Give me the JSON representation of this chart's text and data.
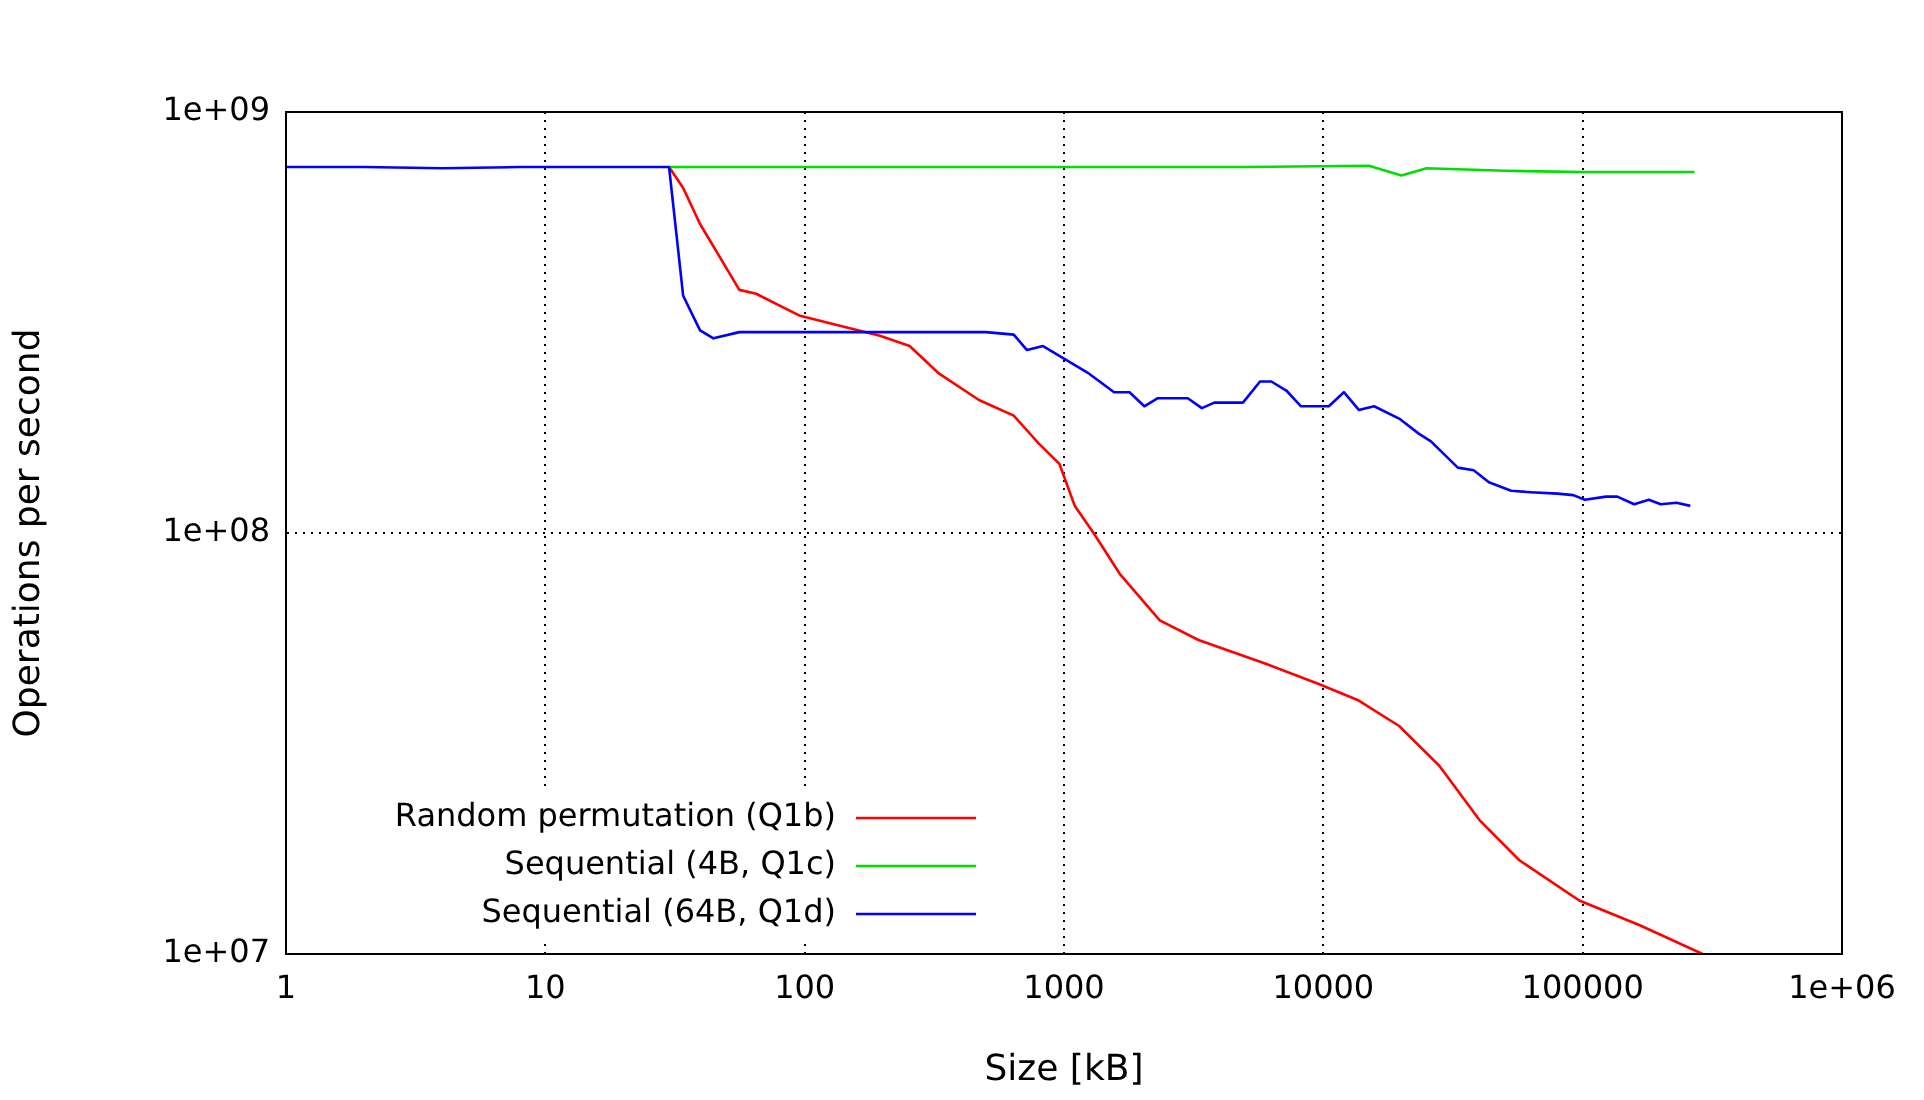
{
  "chart_data": {
    "type": "line",
    "xlabel": "Size [kB]",
    "ylabel": "Operations per second",
    "log": "xy",
    "grid": true,
    "legend": "bottom left",
    "marker": "none",
    "line_style": "solid",
    "xlim": [
      1,
      1000000
    ],
    "xticks": [
      1,
      10,
      100,
      1000,
      10000,
      100000,
      {
        "value": 1000000,
        "label": "1e+06"
      }
    ],
    "ylim": [
      10000000,
      1000000000
    ],
    "yticks": [
      {
        "value": 10000000,
        "label": "1e+07"
      },
      {
        "value": 100000000,
        "label": "1e+08"
      },
      {
        "value": 1000000000,
        "label": "1e+09"
      }
    ],
    "series": [
      {
        "name": "Random permutation (Q1b)",
        "color": "#ff0000",
        "x": [
          30,
          34,
          39.5,
          56,
          65,
          96,
          195,
          254,
          330,
          470,
          640,
          800,
          960,
          1100,
          1300,
          1640,
          2340,
          3300,
          6000,
          9600,
          13700,
          19600,
          28000,
          40000,
          57000,
          97000,
          166000,
          290000
        ],
        "values": [
          740000000,
          660000000,
          542000000,
          378000000,
          370000000,
          328000000,
          294000000,
          278000000,
          239000000,
          207000000,
          190000000,
          163000000,
          146000000,
          116000000,
          100000000,
          80000000,
          62000000,
          55700000,
          48900000,
          43800000,
          40000000,
          34800000,
          28000000,
          20800000,
          16700000,
          13400000,
          11700000,
          10000000
        ]
      },
      {
        "name": "Sequential (4B, Q1c)",
        "color": "#00e000",
        "x": [
          30,
          100,
          1000,
          5000,
          15000,
          20000,
          25000,
          50000,
          100000,
          270000
        ],
        "values": [
          740000000,
          740000000,
          740000000,
          740000000,
          745000000,
          707000000,
          735000000,
          725000000,
          720000000,
          720000000
        ]
      },
      {
        "name": "Sequential (64B, Q1d)",
        "color": "#0000ff",
        "x": [
          1,
          2,
          4,
          8,
          16,
          30,
          34,
          39.5,
          44.5,
          56,
          500,
          640,
          720,
          830,
          1250,
          1560,
          1790,
          2040,
          2300,
          3000,
          3400,
          3800,
          4900,
          5700,
          6300,
          7200,
          8200,
          10500,
          12000,
          13700,
          15700,
          19600,
          23400,
          26000,
          33000,
          38000,
          43500,
          53000,
          63000,
          80000,
          92000,
          102000,
          123000,
          136000,
          158000,
          180000,
          200000,
          230000,
          260000
        ],
        "values": [
          740000000,
          740000000,
          735000000,
          740000000,
          740000000,
          740000000,
          366000000,
          303000000,
          290000000,
          300000000,
          300000000,
          296000000,
          272000000,
          278000000,
          239000000,
          216000000,
          216000000,
          200000000,
          209000000,
          209000000,
          198000000,
          204000000,
          204000000,
          229000000,
          229000000,
          218000000,
          200000000,
          200000000,
          216000000,
          196000000,
          200000000,
          187000000,
          172000000,
          165000000,
          143000000,
          141000000,
          132000000,
          126000000,
          125000000,
          124000000,
          123000000,
          120000000,
          122000000,
          122000000,
          117000000,
          120000000,
          117000000,
          118000000,
          116000000
        ]
      }
    ]
  }
}
